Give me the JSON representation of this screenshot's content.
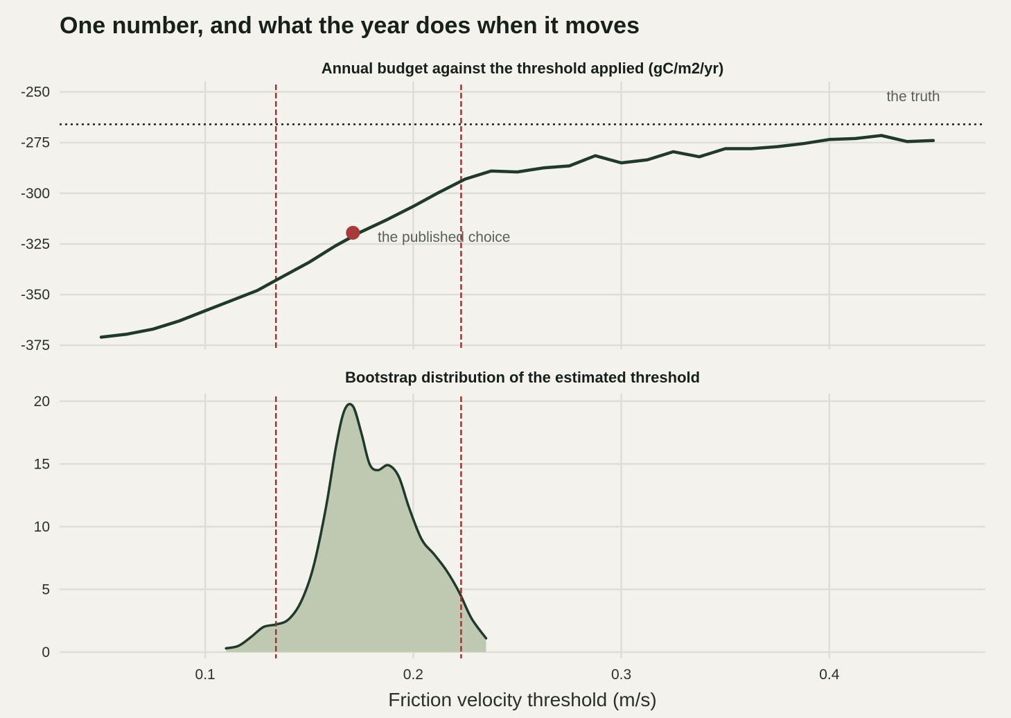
{
  "title": "One number, and what the year does when it moves",
  "chart_data": [
    {
      "type": "line",
      "title": "Annual budget against the threshold applied (gC/m2/yr)",
      "xlabel": "Friction velocity threshold (m/s)",
      "ylabel": "",
      "xlim": [
        0.03,
        0.475
      ],
      "ylim": [
        -377,
        -245
      ],
      "x_ticks": [
        0.1,
        0.2,
        0.3,
        0.4
      ],
      "x_tick_labels": [
        "0.1",
        "0.2",
        "0.3",
        "0.4"
      ],
      "y_ticks": [
        -375,
        -350,
        -325,
        -300,
        -275,
        -250
      ],
      "y_tick_labels": [
        "-375",
        "-350",
        "-325",
        "-300",
        "-275",
        "-250"
      ],
      "grid": true,
      "series": [
        {
          "x": [
            0.05,
            0.0625,
            0.075,
            0.0875,
            0.1,
            0.1125,
            0.125,
            0.1375,
            0.15,
            0.1625,
            0.175,
            0.1875,
            0.2,
            0.2125,
            0.225,
            0.2375,
            0.25,
            0.2625,
            0.275,
            0.2875,
            0.3,
            0.3125,
            0.325,
            0.3375,
            0.35,
            0.3625,
            0.375,
            0.3875,
            0.4,
            0.4125,
            0.425,
            0.4375,
            0.45
          ],
          "y": [
            -371,
            -369.5,
            -367,
            -363,
            -358,
            -353,
            -348,
            -341,
            -334,
            -326,
            -319,
            -313,
            -306.5,
            -299.5,
            -293,
            -289,
            -289.5,
            -287.5,
            -286.5,
            -281.5,
            -285,
            -283.5,
            -279.5,
            -282,
            -278,
            -278,
            -277,
            -275.5,
            -273.5,
            -273,
            -271.5,
            -274.5,
            -274
          ]
        }
      ],
      "reference_lines": {
        "truth_y": -266,
        "threshold_interval": [
          0.134,
          0.223
        ]
      },
      "highlight_point": {
        "x": 0.171,
        "y": -319.5
      },
      "annotations": [
        "the truth",
        "the published choice"
      ]
    },
    {
      "type": "area",
      "title": "Bootstrap distribution of the estimated threshold",
      "xlabel": "Friction velocity threshold (m/s)",
      "ylabel": "",
      "xlim": [
        0.03,
        0.475
      ],
      "ylim": [
        -0.5,
        20.6
      ],
      "x_ticks": [
        0.1,
        0.2,
        0.3,
        0.4
      ],
      "x_tick_labels": [
        "0.1",
        "0.2",
        "0.3",
        "0.4"
      ],
      "y_ticks": [
        0,
        5,
        10,
        15,
        20
      ],
      "y_tick_labels": [
        "0",
        "5",
        "10",
        "15",
        "20"
      ],
      "grid": true,
      "series": [
        {
          "x": [
            0.11,
            0.116,
            0.122,
            0.128,
            0.134,
            0.14,
            0.146,
            0.152,
            0.158,
            0.163,
            0.167,
            0.171,
            0.175,
            0.179,
            0.183,
            0.188,
            0.193,
            0.198,
            0.204,
            0.21,
            0.216,
            0.222,
            0.228,
            0.235
          ],
          "y": [
            0.3,
            0.5,
            1.2,
            2.0,
            2.2,
            2.6,
            4.0,
            6.8,
            11.5,
            16.5,
            19.3,
            19.6,
            17.5,
            15.0,
            14.5,
            14.9,
            14.0,
            11.5,
            9.0,
            7.8,
            6.5,
            4.8,
            2.7,
            1.1
          ]
        }
      ],
      "reference_lines": {
        "threshold_interval": [
          0.134,
          0.223
        ]
      }
    }
  ],
  "colors": {
    "background": "#f3f2ec",
    "line": "#1f3a2a",
    "fill": "#bfc9b2",
    "reference": "#9e3434",
    "highlight": "#a83a3a",
    "annotation": "#59605a",
    "grid": "#deddd6"
  }
}
